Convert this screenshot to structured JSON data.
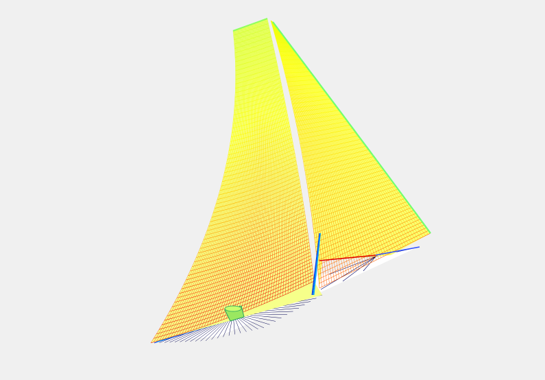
{
  "scene": {
    "background": "#f0f0f0",
    "colormap": [
      "#0000c8",
      "#0070ff",
      "#00d8ff",
      "#40ff80",
      "#c8ff30",
      "#ffff00",
      "#ffa000",
      "#ff2000",
      "#c80000"
    ],
    "mesh_stroke": "#ffffff",
    "hub_color": "#9ae860"
  }
}
